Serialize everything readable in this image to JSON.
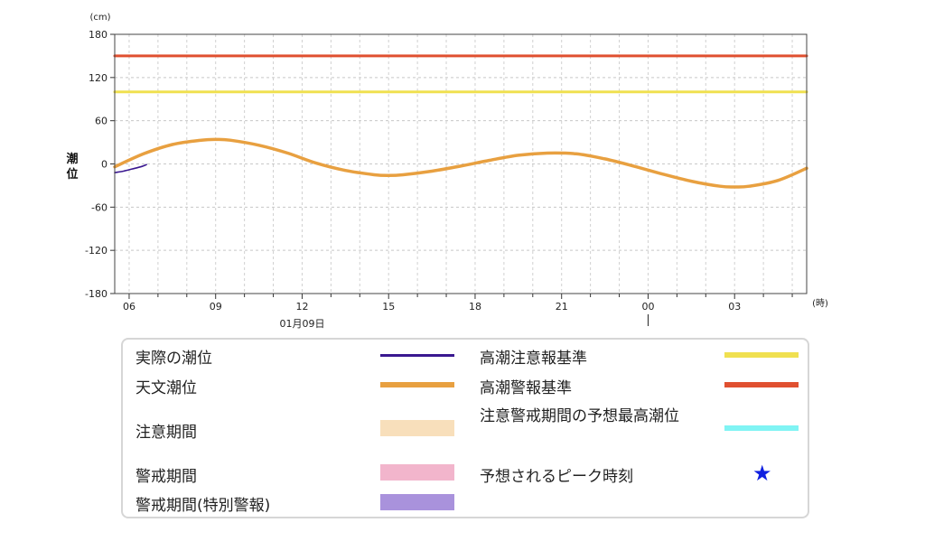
{
  "chart_data": {
    "type": "line",
    "ylabel": "潮位",
    "yunit": "(cm)",
    "xunit": "(時)",
    "ylim": [
      -180,
      180
    ],
    "yticks": [
      180,
      120,
      60,
      0,
      -60,
      -120,
      -180
    ],
    "x_hour_range": [
      5.5,
      29.5
    ],
    "xticks": [
      {
        "hour": 6,
        "label": "06"
      },
      {
        "hour": 9,
        "label": "09"
      },
      {
        "hour": 12,
        "label": "12"
      },
      {
        "hour": 15,
        "label": "15"
      },
      {
        "hour": 18,
        "label": "18"
      },
      {
        "hour": 21,
        "label": "21"
      },
      {
        "hour": 24,
        "label": "00"
      },
      {
        "hour": 27,
        "label": "03"
      }
    ],
    "date_label": "01月09日",
    "date_label_hour": 12,
    "day_boundary_hour": 24,
    "grid": true,
    "series": [
      {
        "name": "天文潮位",
        "color": "#e8a040",
        "x": [
          5.5,
          6.5,
          7.5,
          8.5,
          9.0,
          9.5,
          10.5,
          11.5,
          12.5,
          13.5,
          14.5,
          15.0,
          15.5,
          16.5,
          17.5,
          18.5,
          19.5,
          20.5,
          21.5,
          22.5,
          23.5,
          24.5,
          25.5,
          26.5,
          27.0,
          27.5,
          28.5,
          29.5
        ],
        "y": [
          -4,
          14,
          27,
          33,
          34,
          33,
          26,
          15,
          1,
          -9,
          -15,
          -16,
          -15,
          -10,
          -3,
          5,
          12,
          15,
          14,
          7,
          -3,
          -14,
          -24,
          -31,
          -32,
          -31,
          -23,
          -6
        ]
      },
      {
        "name": "実際の潮位",
        "color": "#3a1890",
        "x": [
          5.5,
          5.8,
          6.1,
          6.4,
          6.6
        ],
        "y": [
          -12,
          -10,
          -7,
          -4,
          -1
        ]
      },
      {
        "name": "高潮注意報基準",
        "color": "#f0e050",
        "x": [
          5.5,
          29.5
        ],
        "y": [
          100,
          100
        ]
      },
      {
        "name": "高潮警報基準",
        "color": "#e05030",
        "x": [
          5.5,
          29.5
        ],
        "y": [
          150,
          150
        ]
      }
    ]
  },
  "legend": {
    "items": [
      {
        "label": "実際の潮位",
        "color": "#3a1890",
        "kind": "line"
      },
      {
        "label": "天文潮位",
        "color": "#e8a040",
        "kind": "line"
      },
      {
        "label": "注意期間",
        "color": "#f8dfbb",
        "kind": "band"
      },
      {
        "label": "警戒期間",
        "color": "#f2b5cc",
        "kind": "band"
      },
      {
        "label": "警戒期間(特別警報)",
        "color": "#a992dc",
        "kind": "band"
      },
      {
        "label": "高潮注意報基準",
        "color": "#f0e050",
        "kind": "line"
      },
      {
        "label": "高潮警報基準",
        "color": "#e05030",
        "kind": "line"
      },
      {
        "label": "注意警戒期間の予想最高潮位",
        "color": "#80f4f4",
        "kind": "line"
      },
      {
        "label": "予想されるピーク時刻",
        "color": "#1020e0",
        "kind": "star",
        "icon": "star-icon"
      }
    ]
  }
}
